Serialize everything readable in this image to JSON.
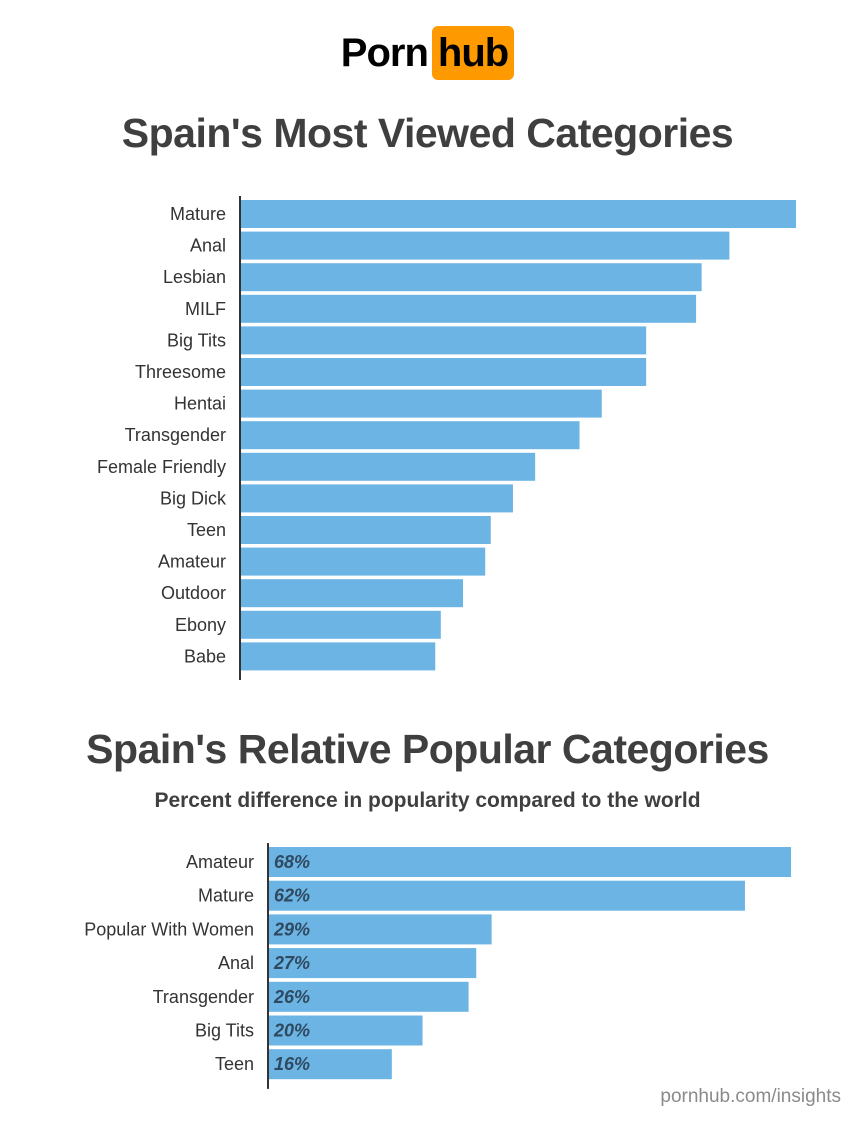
{
  "logo": {
    "part1": "Porn",
    "part2": "hub",
    "accent": "#ff9900"
  },
  "chart_data": [
    {
      "type": "bar",
      "orientation": "horizontal",
      "title": "Spain's Most Viewed Categories",
      "categories": [
        "Mature",
        "Anal",
        "Lesbian",
        "MILF",
        "Big Tits",
        "Threesome",
        "Hentai",
        "Transgender",
        "Female Friendly",
        "Big Dick",
        "Teen",
        "Amateur",
        "Outdoor",
        "Ebony",
        "Babe"
      ],
      "values": [
        100,
        88,
        83,
        82,
        73,
        73,
        65,
        61,
        53,
        49,
        45,
        44,
        40,
        36,
        35
      ],
      "value_note": "relative, no values printed",
      "xlim": [
        0,
        100
      ],
      "grid": false,
      "bar_color": "#6cb4e4"
    },
    {
      "type": "bar",
      "orientation": "horizontal",
      "title": "Spain's Relative Popular Categories",
      "subtitle": "Percent difference in popularity compared to the world",
      "categories": [
        "Amateur",
        "Mature",
        "Popular With Women",
        "Anal",
        "Transgender",
        "Big Tits",
        "Teen"
      ],
      "values": [
        68,
        62,
        29,
        27,
        26,
        20,
        16
      ],
      "data_labels": [
        "68%",
        "62%",
        "29%",
        "27%",
        "26%",
        "20%",
        "16%"
      ],
      "xlim": [
        0,
        68
      ],
      "grid": false,
      "bar_color": "#6cb4e4"
    }
  ],
  "footer": "pornhub.com/insights"
}
